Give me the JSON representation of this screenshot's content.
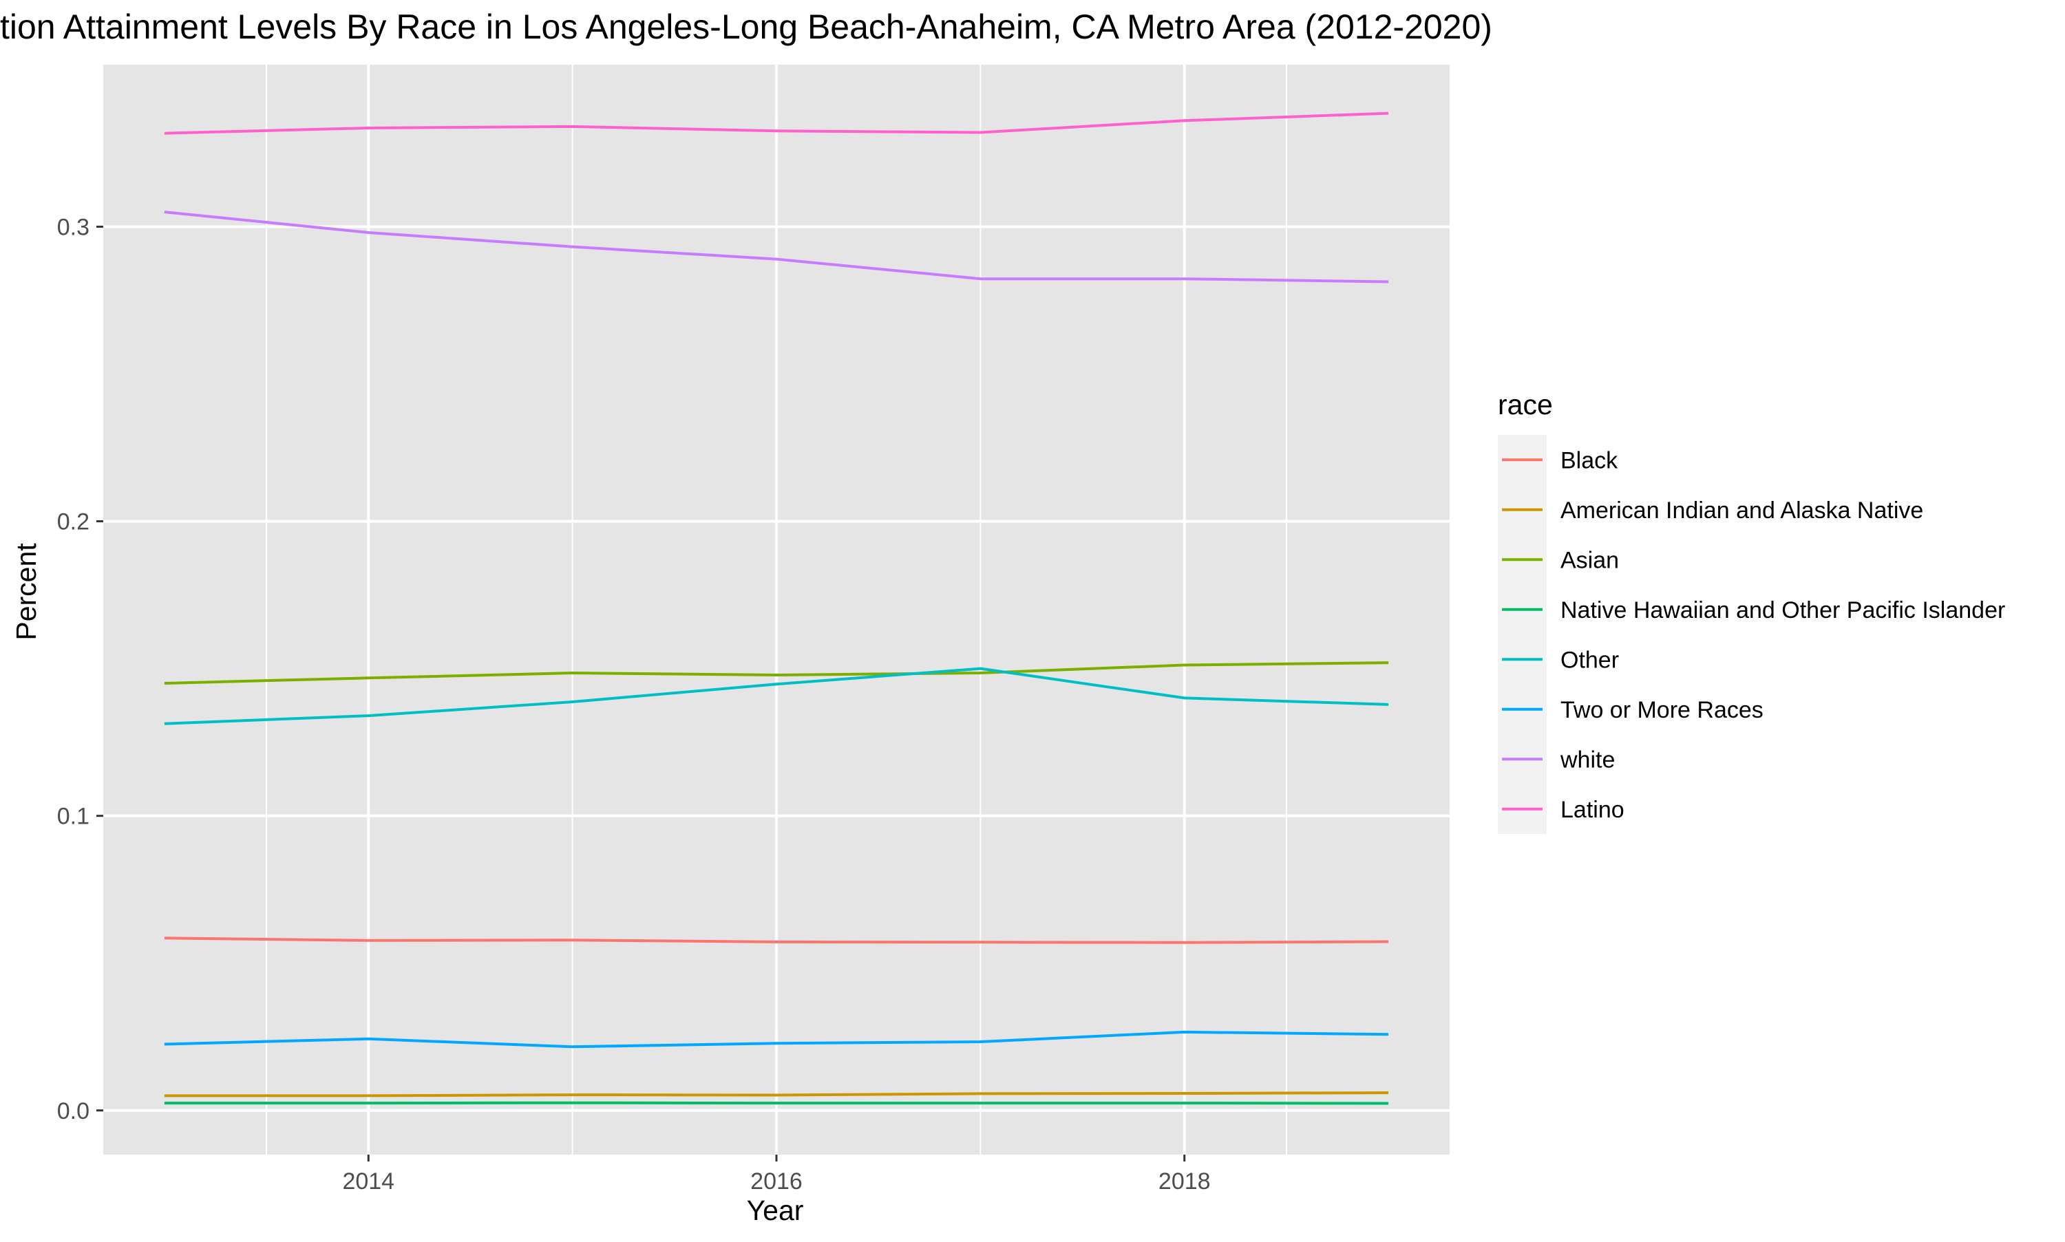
{
  "chart_data": {
    "type": "line",
    "title": "tion Attainment Levels By Race in Los Angeles-Long Beach-Anaheim, CA Metro Area (2012-2020)",
    "xlabel": "Year",
    "ylabel": "Percent",
    "xlim": [
      2012.7,
      2019.3
    ],
    "ylim": [
      -0.015,
      0.355
    ],
    "x_ticks": [
      2014,
      2016,
      2018
    ],
    "x_tick_labels": [
      "2014",
      "2016",
      "2018"
    ],
    "y_ticks": [
      0.0,
      0.1,
      0.2,
      0.3
    ],
    "y_tick_labels": [
      "0.0",
      "0.1",
      "0.2",
      "0.3"
    ],
    "grid": true,
    "panel_background": "#e5e5e5",
    "legend": {
      "title": "race",
      "position": "right"
    },
    "x": [
      2013,
      2014,
      2015,
      2016,
      2017,
      2018,
      2019
    ],
    "series": [
      {
        "name": "Black",
        "color": "#F8766D",
        "values": [
          0.0585,
          0.0577,
          0.0578,
          0.0572,
          0.0571,
          0.057,
          0.0573
        ]
      },
      {
        "name": "American Indian and Alaska Native",
        "color": "#CD9600",
        "values": [
          0.005,
          0.005,
          0.0053,
          0.0052,
          0.0057,
          0.0058,
          0.006
        ]
      },
      {
        "name": "Asian",
        "color": "#7CAE00",
        "values": [
          0.145,
          0.1468,
          0.1485,
          0.1478,
          0.1485,
          0.1512,
          0.152
        ]
      },
      {
        "name": "Native Hawaiian and Other Pacific Islander",
        "color": "#00BE67",
        "values": [
          0.0025,
          0.0025,
          0.0026,
          0.0025,
          0.0025,
          0.0025,
          0.0024
        ]
      },
      {
        "name": "Other",
        "color": "#00BFC4",
        "values": [
          0.1313,
          0.134,
          0.1387,
          0.1447,
          0.15,
          0.14,
          0.1378
        ]
      },
      {
        "name": "Two or More Races",
        "color": "#00A9FF",
        "values": [
          0.0225,
          0.0243,
          0.0216,
          0.0228,
          0.0233,
          0.0266,
          0.0258
        ]
      },
      {
        "name": "white",
        "color": "#C77CFF",
        "values": [
          0.305,
          0.298,
          0.2932,
          0.289,
          0.2823,
          0.2823,
          0.2813
        ]
      },
      {
        "name": "Latino",
        "color": "#FF61CC",
        "values": [
          0.3317,
          0.3335,
          0.334,
          0.3325,
          0.332,
          0.336,
          0.3385
        ]
      }
    ]
  }
}
